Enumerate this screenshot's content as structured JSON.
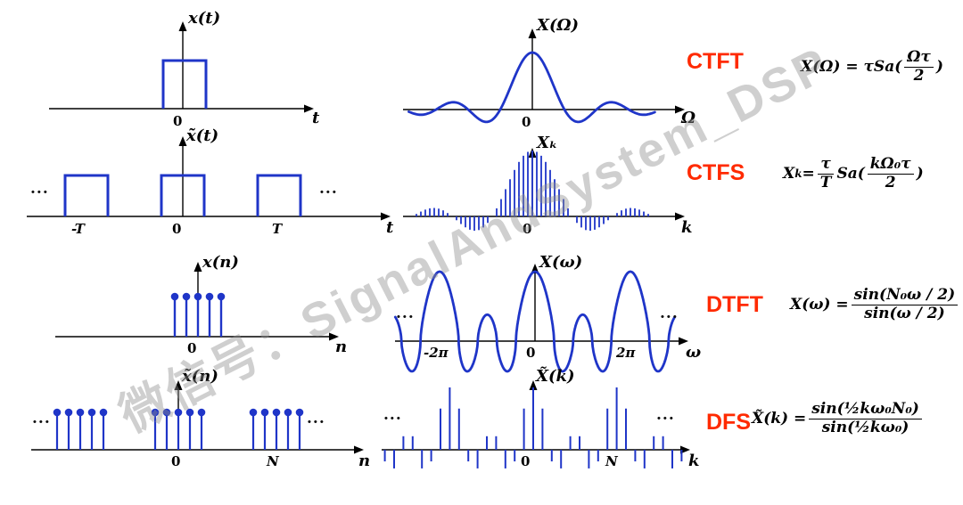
{
  "watermark": "微信号：SignalAndSystem_DSP",
  "ellipsis": "...",
  "colors": {
    "plot": "#1f35c8",
    "axis": "#000000",
    "label": "#ff2a00",
    "watermark": "#8f8f8f"
  },
  "rows": [
    {
      "name": "CTFT",
      "time": {
        "title": "x(t)",
        "axis": "t",
        "ticks": [
          "0"
        ]
      },
      "freq": {
        "title": "X(Ω)",
        "axis": "Ω",
        "ticks": [
          "0"
        ]
      },
      "formula": [
        {
          "t": "txt",
          "v": "X(Ω) = τSa("
        },
        {
          "t": "frac",
          "n": "Ωτ",
          "d": "2"
        },
        {
          "t": "txt",
          "v": ")"
        }
      ]
    },
    {
      "name": "CTFS",
      "time": {
        "title": "x̃(t)",
        "axis": "t",
        "ticks": [
          "-T",
          "0",
          "T"
        ]
      },
      "freq": {
        "title": "Xₖ",
        "axis": "k",
        "ticks": [
          "0"
        ]
      },
      "formula": [
        {
          "t": "txt",
          "v": "X"
        },
        {
          "t": "sub",
          "v": "k"
        },
        {
          "t": "txt",
          "v": " = "
        },
        {
          "t": "frac",
          "n": "τ",
          "d": "T"
        },
        {
          "t": "txt",
          "v": "Sa("
        },
        {
          "t": "frac",
          "n": "kΩ₀τ",
          "d": "2"
        },
        {
          "t": "txt",
          "v": ")"
        }
      ]
    },
    {
      "name": "DTFT",
      "time": {
        "title": "x(n)",
        "axis": "n",
        "ticks": [
          "0"
        ]
      },
      "freq": {
        "title": "X(ω)",
        "axis": "ω",
        "ticks": [
          "-2π",
          "0",
          "2π"
        ]
      },
      "formula": [
        {
          "t": "txt",
          "v": "X(ω) = "
        },
        {
          "t": "frac",
          "n": "sin(N₀ω / 2)",
          "d": "sin(ω / 2)"
        }
      ]
    },
    {
      "name": "DFS",
      "time": {
        "title": "x̃(n)",
        "axis": "n",
        "ticks": [
          "0",
          "N"
        ]
      },
      "freq": {
        "title": "X̃(k)",
        "axis": "k",
        "ticks": [
          "0",
          "N"
        ]
      },
      "formula": [
        {
          "t": "txt",
          "v": "X̃(k) = "
        },
        {
          "t": "frac",
          "n": "sin(½kω₀N₀)",
          "d": "sin(½kω₀)"
        }
      ]
    }
  ],
  "chart_data": [
    {
      "id": "ctft-time",
      "type": "area",
      "desc": "rectangular pulse centered at 0",
      "pulse_centers": [
        0
      ],
      "height": 1
    },
    {
      "id": "ctft-freq",
      "type": "line",
      "desc": "sinc Sa(Ωτ/2)",
      "peak": 1,
      "lobes_each_side": 3
    },
    {
      "id": "ctfs-time",
      "type": "area",
      "desc": "periodic rectangular pulses",
      "pulse_centers": [
        "-T",
        "0",
        "T"
      ],
      "height": 1
    },
    {
      "id": "ctfs-freq",
      "type": "bar",
      "desc": "sampled sinc envelope (Fourier series coefficients)",
      "mainlobe_halfwidth_samples": 9,
      "samples_each_side": 27
    },
    {
      "id": "dtft-time",
      "type": "bar",
      "desc": "finite discrete rectangular sequence",
      "n": [
        -2,
        -1,
        0,
        1,
        2
      ],
      "values": [
        1,
        1,
        1,
        1,
        1
      ]
    },
    {
      "id": "dtft-freq",
      "type": "line",
      "desc": "periodic Dirichlet kernel sin(N0w/2)/sin(w/2)",
      "N0": 5,
      "period": "2π",
      "peaks_at": [
        "-2π",
        "0",
        "2π"
      ]
    },
    {
      "id": "dfs-time",
      "type": "bar",
      "desc": "periodic discrete rectangular sequence, period N",
      "group_n": [
        -2,
        -1,
        0,
        1,
        2
      ],
      "values": [
        1,
        1,
        1,
        1,
        1
      ],
      "periods_shown": 3
    },
    {
      "id": "dfs-freq",
      "type": "bar",
      "desc": "periodic sampled Dirichlet kernel",
      "N": 9,
      "N0": 5,
      "peaks_at": [
        "0",
        "N"
      ]
    }
  ]
}
